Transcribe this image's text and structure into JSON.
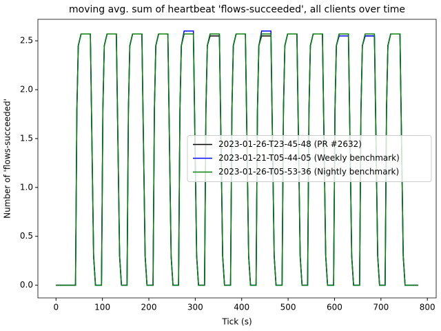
{
  "chart_data": {
    "type": "line",
    "title": "moving avg. sum of heartbeat 'flows-succeeded', all clients over time",
    "xlabel": "Tick (s)",
    "ylabel": "Number of 'flows-succeeded'",
    "x": [
      0,
      42,
      45,
      48,
      54,
      74,
      77,
      81,
      85,
      98,
      101,
      104,
      110,
      130,
      133,
      137,
      141,
      153,
      156,
      159,
      165,
      185,
      188,
      192,
      196,
      209,
      212,
      215,
      221,
      241,
      244,
      248,
      252,
      264,
      267,
      270,
      276,
      296,
      299,
      303,
      307,
      320,
      323,
      326,
      332,
      352,
      355,
      359,
      363,
      376,
      379,
      382,
      388,
      408,
      411,
      415,
      419,
      431,
      434,
      437,
      443,
      463,
      466,
      470,
      474,
      487,
      490,
      493,
      499,
      519,
      522,
      526,
      530,
      542,
      545,
      548,
      554,
      574,
      577,
      581,
      585,
      598,
      601,
      604,
      610,
      630,
      633,
      637,
      641,
      654,
      657,
      660,
      666,
      686,
      689,
      693,
      697,
      709,
      712,
      715,
      721,
      741,
      744,
      748,
      752,
      780
    ],
    "series": [
      {
        "name": "2023-01-26-T23-45-48 (PR #2632)",
        "color": "#000000",
        "values": [
          0,
          0,
          1.8,
          2.45,
          2.57,
          2.57,
          1.6,
          0.3,
          0,
          0,
          1.8,
          2.45,
          2.57,
          2.57,
          1.6,
          0.3,
          0,
          0,
          1.8,
          2.45,
          2.57,
          2.57,
          1.6,
          0.3,
          0,
          0,
          1.8,
          2.45,
          2.57,
          2.57,
          1.6,
          0.3,
          0,
          0,
          1.8,
          2.45,
          2.57,
          2.57,
          1.6,
          0.3,
          0,
          0,
          1.8,
          2.45,
          2.55,
          2.55,
          1.6,
          0.3,
          0,
          0,
          1.8,
          2.45,
          2.57,
          2.57,
          1.6,
          0.3,
          0,
          0,
          1.8,
          2.45,
          2.55,
          2.55,
          1.6,
          0.3,
          0,
          0,
          1.8,
          2.45,
          2.57,
          2.57,
          1.6,
          0.3,
          0,
          0,
          1.8,
          2.45,
          2.57,
          2.57,
          1.6,
          0.3,
          0,
          0,
          1.8,
          2.45,
          2.57,
          2.57,
          1.6,
          0.3,
          0,
          0,
          1.8,
          2.45,
          2.55,
          2.55,
          1.6,
          0.3,
          0,
          0,
          1.8,
          2.45,
          2.57,
          2.57,
          1.6,
          0.3,
          0,
          0
        ]
      },
      {
        "name": "2023-01-21-T05-44-05 (Weekly benchmark)",
        "color": "#0000ff",
        "values": [
          0,
          0,
          1.8,
          2.45,
          2.57,
          2.57,
          1.6,
          0.3,
          0,
          0,
          1.8,
          2.45,
          2.57,
          2.57,
          1.6,
          0.3,
          0,
          0,
          1.8,
          2.45,
          2.57,
          2.57,
          1.6,
          0.3,
          0,
          0,
          1.8,
          2.45,
          2.57,
          2.57,
          1.6,
          0.3,
          0,
          0,
          1.8,
          2.45,
          2.6,
          2.6,
          1.6,
          0.3,
          0,
          0,
          1.8,
          2.45,
          2.57,
          2.57,
          1.6,
          0.3,
          0,
          0,
          1.8,
          2.45,
          2.57,
          2.57,
          1.6,
          0.3,
          0,
          0,
          1.8,
          2.45,
          2.6,
          2.6,
          1.6,
          0.3,
          0,
          0,
          1.8,
          2.45,
          2.57,
          2.57,
          1.6,
          0.3,
          0,
          0,
          1.8,
          2.45,
          2.57,
          2.57,
          1.6,
          0.3,
          0,
          0,
          1.8,
          2.45,
          2.55,
          2.55,
          1.6,
          0.3,
          0,
          0,
          1.8,
          2.45,
          2.55,
          2.55,
          1.6,
          0.3,
          0,
          0,
          1.8,
          2.45,
          2.57,
          2.57,
          1.6,
          0.3,
          0,
          0
        ]
      },
      {
        "name": "2023-01-26-T05-53-36 (Nightly benchmark)",
        "color": "#008000",
        "values": [
          0,
          0,
          1.8,
          2.45,
          2.57,
          2.57,
          1.6,
          0.3,
          0,
          0,
          1.8,
          2.45,
          2.57,
          2.57,
          1.6,
          0.3,
          0,
          0,
          1.8,
          2.45,
          2.57,
          2.57,
          1.6,
          0.3,
          0,
          0,
          1.8,
          2.45,
          2.57,
          2.57,
          1.6,
          0.3,
          0,
          0,
          1.8,
          2.45,
          2.57,
          2.57,
          1.6,
          0.3,
          0,
          0,
          1.8,
          2.45,
          2.57,
          2.57,
          1.6,
          0.3,
          0,
          0,
          1.8,
          2.45,
          2.57,
          2.57,
          1.6,
          0.3,
          0,
          0,
          1.8,
          2.45,
          2.57,
          2.57,
          1.6,
          0.3,
          0,
          0,
          1.8,
          2.45,
          2.57,
          2.57,
          1.6,
          0.3,
          0,
          0,
          1.8,
          2.45,
          2.57,
          2.57,
          1.6,
          0.3,
          0,
          0,
          1.8,
          2.45,
          2.57,
          2.57,
          1.6,
          0.3,
          0,
          0,
          1.8,
          2.45,
          2.57,
          2.57,
          1.6,
          0.3,
          0,
          0,
          1.8,
          2.45,
          2.57,
          2.57,
          1.6,
          0.3,
          0,
          0
        ]
      }
    ],
    "xlim": [
      -39,
      819
    ],
    "ylim": [
      -0.13,
      2.72
    ],
    "xticks": [
      0,
      100,
      200,
      300,
      400,
      500,
      600,
      700,
      800
    ],
    "yticks": [
      {
        "value": 0,
        "label": "0.0"
      },
      0.5,
      {
        "value": 1,
        "label": "1.0"
      },
      1.5,
      {
        "value": 2,
        "label": "2.0"
      },
      2.5
    ],
    "legend": "center right"
  }
}
